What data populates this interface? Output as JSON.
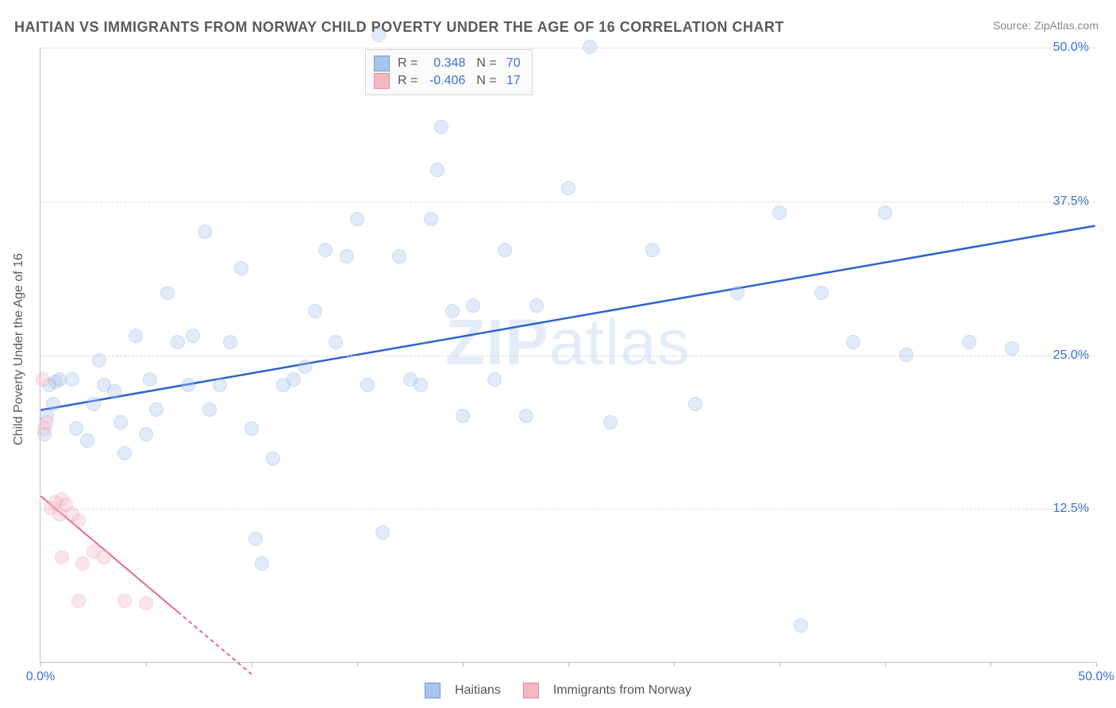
{
  "title": "HAITIAN VS IMMIGRANTS FROM NORWAY CHILD POVERTY UNDER THE AGE OF 16 CORRELATION CHART",
  "source": "Source: ZipAtlas.com",
  "y_axis_label": "Child Poverty Under the Age of 16",
  "watermark": {
    "bold": "ZIP",
    "light": "atlas"
  },
  "chart": {
    "type": "scatter",
    "xlim": [
      0,
      50
    ],
    "ylim": [
      0,
      50
    ],
    "x_ticks": [
      0,
      5,
      10,
      15,
      20,
      25,
      30,
      35,
      40,
      45,
      50
    ],
    "x_tick_labels": {
      "0": "0.0%",
      "50": "50.0%"
    },
    "y_ticks": [
      12.5,
      25.0,
      37.5,
      50.0
    ],
    "y_tick_labels": [
      "12.5%",
      "25.0%",
      "37.5%",
      "50.0%"
    ],
    "grid_color": "#d8d8d8",
    "axis_color": "#bfbfbf",
    "tick_label_color": "#3b6fd6",
    "background_color": "#ffffff",
    "point_radius": 9,
    "point_opacity": 0.35,
    "series": [
      {
        "name": "Haitians",
        "color_fill": "#a9c5ec",
        "color_stroke": "#6e9bdb",
        "r": "0.348",
        "n": "70",
        "trend": {
          "x1": 0,
          "y1": 20.5,
          "x2": 50,
          "y2": 35.5,
          "stroke": "#2d62d4",
          "width": 2.5,
          "dash": ""
        },
        "points": [
          [
            0.2,
            18.5
          ],
          [
            0.3,
            20.0
          ],
          [
            0.4,
            22.5
          ],
          [
            0.6,
            21.0
          ],
          [
            0.7,
            22.8
          ],
          [
            0.9,
            23.0
          ],
          [
            1.5,
            23.0
          ],
          [
            1.7,
            19.0
          ],
          [
            2.2,
            18.0
          ],
          [
            2.5,
            21.0
          ],
          [
            2.8,
            24.5
          ],
          [
            3.0,
            22.5
          ],
          [
            3.5,
            22.0
          ],
          [
            3.8,
            19.5
          ],
          [
            4.0,
            17.0
          ],
          [
            4.5,
            26.5
          ],
          [
            5.0,
            18.5
          ],
          [
            5.2,
            23.0
          ],
          [
            5.5,
            20.5
          ],
          [
            6.0,
            30.0
          ],
          [
            6.5,
            26.0
          ],
          [
            7.0,
            22.5
          ],
          [
            7.2,
            26.5
          ],
          [
            7.8,
            35.0
          ],
          [
            8.0,
            20.5
          ],
          [
            8.5,
            22.5
          ],
          [
            9.0,
            26.0
          ],
          [
            9.5,
            32.0
          ],
          [
            10.0,
            19.0
          ],
          [
            10.2,
            10.0
          ],
          [
            10.5,
            8.0
          ],
          [
            11.0,
            16.5
          ],
          [
            11.5,
            22.5
          ],
          [
            12.0,
            23.0
          ],
          [
            12.5,
            24.0
          ],
          [
            13.0,
            28.5
          ],
          [
            13.5,
            33.5
          ],
          [
            14.0,
            26.0
          ],
          [
            14.5,
            33.0
          ],
          [
            15.0,
            36.0
          ],
          [
            15.5,
            22.5
          ],
          [
            16.0,
            51.0
          ],
          [
            16.2,
            10.5
          ],
          [
            17.0,
            33.0
          ],
          [
            17.5,
            23.0
          ],
          [
            18.0,
            22.5
          ],
          [
            18.5,
            36.0
          ],
          [
            18.8,
            40.0
          ],
          [
            19.0,
            43.5
          ],
          [
            19.5,
            28.5
          ],
          [
            20.0,
            20.0
          ],
          [
            20.5,
            29.0
          ],
          [
            21.5,
            23.0
          ],
          [
            22.0,
            33.5
          ],
          [
            23.0,
            20.0
          ],
          [
            23.5,
            29.0
          ],
          [
            25.0,
            38.5
          ],
          [
            26.0,
            50.0
          ],
          [
            27.0,
            19.5
          ],
          [
            29.0,
            33.5
          ],
          [
            31.0,
            21.0
          ],
          [
            33.0,
            30.0
          ],
          [
            35.0,
            36.5
          ],
          [
            36.0,
            3.0
          ],
          [
            37.0,
            30.0
          ],
          [
            38.5,
            26.0
          ],
          [
            40.0,
            36.5
          ],
          [
            41.0,
            25.0
          ],
          [
            44.0,
            26.0
          ],
          [
            46.0,
            25.5
          ]
        ]
      },
      {
        "name": "Immigrants from Norway",
        "color_fill": "#f4b7c4",
        "color_stroke": "#e68aa0",
        "r": "-0.406",
        "n": "17",
        "trend": {
          "x1": 0,
          "y1": 13.5,
          "x2": 10,
          "y2": -1.0,
          "stroke": "#e26b8a",
          "width": 2,
          "dash": "5 4"
        },
        "trend_solid_to_x": 6.5,
        "points": [
          [
            0.1,
            23.0
          ],
          [
            0.2,
            19.0
          ],
          [
            0.3,
            19.5
          ],
          [
            0.5,
            12.5
          ],
          [
            0.7,
            13.0
          ],
          [
            0.9,
            12.0
          ],
          [
            1.0,
            13.2
          ],
          [
            1.2,
            12.8
          ],
          [
            1.5,
            12.0
          ],
          [
            1.8,
            11.5
          ],
          [
            1.0,
            8.5
          ],
          [
            2.0,
            8.0
          ],
          [
            2.5,
            9.0
          ],
          [
            3.0,
            8.5
          ],
          [
            1.8,
            5.0
          ],
          [
            4.0,
            5.0
          ],
          [
            5.0,
            4.8
          ]
        ]
      }
    ]
  },
  "legend_bottom": [
    {
      "label": "Haitians",
      "fill": "#a9c5ec",
      "stroke": "#6e9bdb"
    },
    {
      "label": "Immigrants from Norway",
      "fill": "#f4b7c4",
      "stroke": "#e68aa0"
    }
  ]
}
